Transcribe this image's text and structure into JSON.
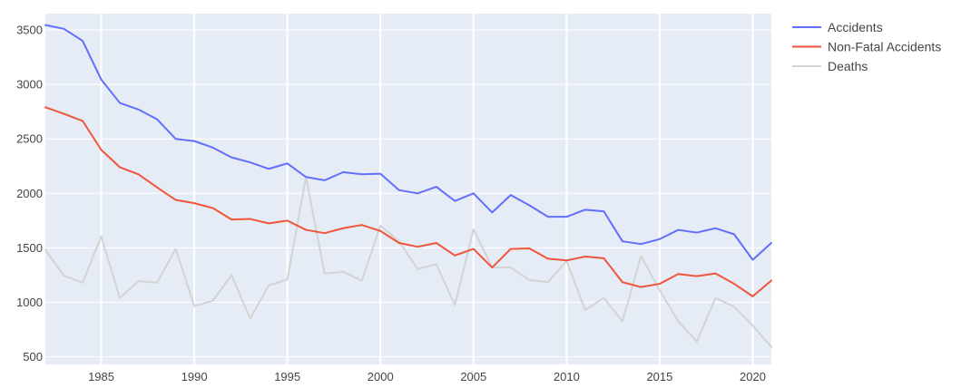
{
  "chart_data": {
    "type": "line",
    "title": "",
    "xlabel": "",
    "ylabel": "",
    "xlim": [
      1982,
      2021
    ],
    "ylim": [
      430,
      3650
    ],
    "x_ticks": [
      1985,
      1990,
      1995,
      2000,
      2005,
      2010,
      2015,
      2020
    ],
    "y_ticks": [
      500,
      1000,
      1500,
      2000,
      2500,
      3000,
      3500
    ],
    "grid": true,
    "legend_position": "top-right, outside plot",
    "background_color": "#e5ecf6",
    "grid_color": "#ffffff",
    "x": [
      1982,
      1983,
      1984,
      1985,
      1986,
      1987,
      1988,
      1989,
      1990,
      1991,
      1992,
      1993,
      1994,
      1995,
      1996,
      1997,
      1998,
      1999,
      2000,
      2001,
      2002,
      2003,
      2004,
      2005,
      2006,
      2007,
      2008,
      2009,
      2010,
      2011,
      2012,
      2013,
      2014,
      2015,
      2016,
      2017,
      2018,
      2019,
      2020,
      2021
    ],
    "series": [
      {
        "name": "Accidents",
        "color": "#636efa",
        "values": [
          3545,
          3510,
          3400,
          3045,
          2830,
          2770,
          2680,
          2500,
          2480,
          2420,
          2330,
          2285,
          2225,
          2275,
          2150,
          2120,
          2195,
          2175,
          2180,
          2030,
          2000,
          2060,
          1930,
          2000,
          1825,
          1985,
          1890,
          1785,
          1785,
          1850,
          1835,
          1560,
          1535,
          1580,
          1665,
          1640,
          1680,
          1625,
          1390,
          1545
        ]
      },
      {
        "name": "Non-Fatal Accidents",
        "color": "#ef553b",
        "values": [
          2790,
          2730,
          2665,
          2400,
          2240,
          2175,
          2055,
          1940,
          1910,
          1865,
          1760,
          1765,
          1725,
          1750,
          1665,
          1635,
          1680,
          1710,
          1655,
          1545,
          1510,
          1545,
          1430,
          1490,
          1320,
          1490,
          1495,
          1400,
          1385,
          1420,
          1405,
          1185,
          1140,
          1170,
          1260,
          1240,
          1265,
          1170,
          1055,
          1200
        ]
      },
      {
        "name": "Deaths",
        "color": "#d3d3d3",
        "values": [
          1480,
          1245,
          1180,
          1605,
          1040,
          1195,
          1180,
          1490,
          965,
          1015,
          1250,
          850,
          1155,
          1210,
          2150,
          1265,
          1280,
          1200,
          1705,
          1560,
          1305,
          1350,
          975,
          1670,
          1320,
          1320,
          1205,
          1185,
          1380,
          930,
          1040,
          825,
          1425,
          1110,
          825,
          640,
          1040,
          960,
          785,
          590
        ]
      }
    ]
  }
}
